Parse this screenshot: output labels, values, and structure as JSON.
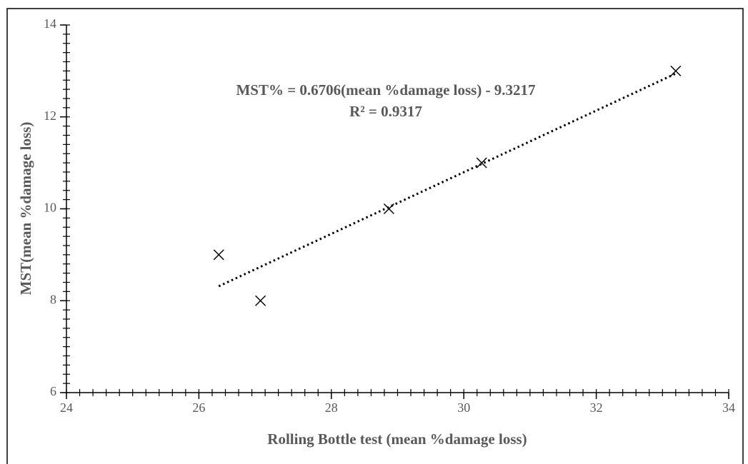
{
  "chart_data": {
    "type": "scatter",
    "x_label": "Rolling Bottle test (mean %damage loss)",
    "y_label": "MST(mean %damage loss)",
    "annotations": [
      "MST% = 0.6706(mean %damage loss) - 9.3217",
      "R² = 0.9317"
    ],
    "trendline": {
      "slope": 0.6706,
      "intercept": -9.3217,
      "style": "dotted",
      "color": "#000000"
    },
    "x": [
      26.3,
      26.93,
      28.87,
      30.27,
      33.2
    ],
    "values": [
      9,
      8,
      10,
      11,
      13
    ],
    "color": "#000000",
    "marker": "x",
    "xlim": [
      24,
      34
    ],
    "xticks": [
      24,
      26,
      28,
      30,
      32,
      34
    ],
    "ylim": [
      6,
      14
    ],
    "yticks": [
      6,
      8,
      10,
      12,
      14
    ],
    "minor_ticks": {
      "x": 0.2,
      "y": 0.2
    },
    "grid": false
  }
}
